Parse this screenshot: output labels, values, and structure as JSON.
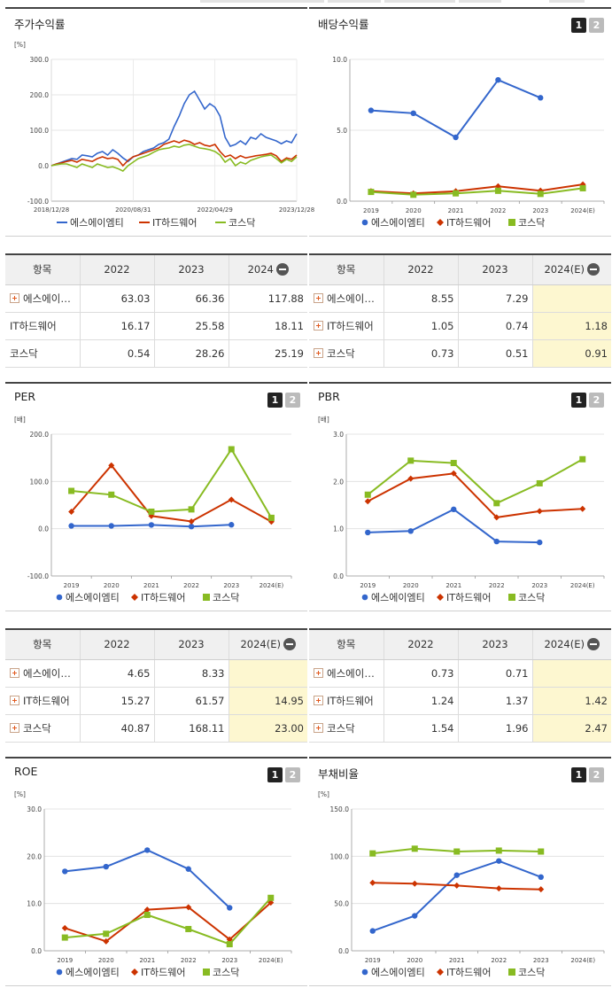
{
  "price_panel": {
    "title": "주가수익률",
    "unit": "[%]",
    "chart_data": {
      "type": "line",
      "yticks": [
        "300.0",
        "200.0",
        "100.0",
        "0.0",
        "-100.0"
      ],
      "ylim": [
        -100,
        300
      ],
      "xticks": [
        "2018/12/28",
        "2020/08/31",
        "2022/04/29",
        "2023/12/28"
      ],
      "series": [
        {
          "name": "에스에이엠티",
          "color": "#3366cc",
          "values": [
            0,
            5,
            10,
            15,
            20,
            18,
            30,
            28,
            25,
            35,
            40,
            30,
            45,
            35,
            22,
            12,
            25,
            30,
            40,
            45,
            50,
            60,
            65,
            75,
            110,
            140,
            175,
            200,
            210,
            185,
            160,
            175,
            165,
            140,
            80,
            55,
            60,
            70,
            60,
            80,
            75,
            90,
            80,
            75,
            70,
            62,
            70,
            65,
            90
          ]
        },
        {
          "name": "IT하드웨어",
          "color": "#cc3300",
          "values": [
            0,
            5,
            8,
            12,
            15,
            10,
            18,
            15,
            12,
            20,
            25,
            20,
            22,
            18,
            0,
            15,
            25,
            30,
            35,
            40,
            45,
            50,
            60,
            65,
            70,
            65,
            72,
            68,
            60,
            65,
            58,
            55,
            60,
            40,
            25,
            30,
            20,
            28,
            22,
            25,
            28,
            30,
            32,
            35,
            28,
            12,
            22,
            18,
            30
          ]
        },
        {
          "name": "코스닥",
          "color": "#88bb22",
          "values": [
            0,
            3,
            5,
            5,
            0,
            -5,
            5,
            0,
            -5,
            5,
            0,
            -5,
            -3,
            -8,
            -15,
            0,
            10,
            20,
            25,
            30,
            38,
            45,
            48,
            50,
            55,
            52,
            58,
            60,
            55,
            50,
            48,
            45,
            40,
            30,
            10,
            20,
            0,
            10,
            5,
            15,
            20,
            25,
            28,
            30,
            20,
            8,
            18,
            12,
            25
          ]
        }
      ]
    }
  },
  "dividend_panel": {
    "title": "배당수익률",
    "btn1": "1",
    "btn2": "2",
    "chart_data": {
      "type": "line",
      "yticks": [
        "10.0",
        "5.0",
        "0.0"
      ],
      "ylim": [
        0,
        10
      ],
      "categories": [
        "2019",
        "2020",
        "2021",
        "2022",
        "2023",
        "2024(E)"
      ],
      "series": [
        {
          "name": "에스에이엠티",
          "color": "#3366cc",
          "values": [
            6.4,
            6.2,
            4.5,
            8.55,
            7.29,
            null
          ]
        },
        {
          "name": "IT하드웨어",
          "color": "#cc3300",
          "values": [
            0.7,
            0.55,
            0.7,
            1.05,
            0.74,
            1.18
          ]
        },
        {
          "name": "코스닥",
          "color": "#88bb22",
          "values": [
            0.65,
            0.45,
            0.55,
            0.73,
            0.51,
            0.91
          ]
        }
      ]
    }
  },
  "per_panel": {
    "title": "PER",
    "unit": "[배]",
    "btn1": "1",
    "btn2": "2",
    "chart_data": {
      "type": "line",
      "yticks": [
        "200.0",
        "100.0",
        "0.0",
        "-100.0"
      ],
      "ylim": [
        -100,
        200
      ],
      "categories": [
        "2019",
        "2020",
        "2021",
        "2022",
        "2023",
        "2024(E)"
      ],
      "series": [
        {
          "name": "에스에이엠티",
          "color": "#3366cc",
          "values": [
            6,
            6,
            8,
            4.65,
            8.33,
            null
          ]
        },
        {
          "name": "IT하드웨어",
          "color": "#cc3300",
          "values": [
            36,
            134,
            27,
            15.27,
            61.57,
            14.95
          ]
        },
        {
          "name": "코스닥",
          "color": "#88bb22",
          "values": [
            80,
            72,
            36,
            40.87,
            168.11,
            23.0
          ]
        }
      ]
    }
  },
  "pbr_panel": {
    "title": "PBR",
    "unit": "[배]",
    "btn1": "1",
    "btn2": "2",
    "chart_data": {
      "type": "line",
      "yticks": [
        "3.0",
        "2.0",
        "1.0",
        "0.0"
      ],
      "ylim": [
        0,
        3
      ],
      "categories": [
        "2019",
        "2020",
        "2021",
        "2022",
        "2023",
        "2024(E)"
      ],
      "series": [
        {
          "name": "에스에이엠티",
          "color": "#3366cc",
          "values": [
            0.92,
            0.95,
            1.41,
            0.73,
            0.71,
            null
          ]
        },
        {
          "name": "IT하드웨어",
          "color": "#cc3300",
          "values": [
            1.58,
            2.06,
            2.17,
            1.24,
            1.37,
            1.42
          ]
        },
        {
          "name": "코스닥",
          "color": "#88bb22",
          "values": [
            1.72,
            2.44,
            2.39,
            1.54,
            1.96,
            2.47
          ]
        }
      ]
    }
  },
  "roe_panel": {
    "title": "ROE",
    "unit": "[%]",
    "btn1": "1",
    "btn2": "2",
    "chart_data": {
      "type": "line",
      "yticks": [
        "30.0",
        "20.0",
        "10.0",
        "0.0"
      ],
      "ylim": [
        0,
        30
      ],
      "categories": [
        "2019",
        "2020",
        "2021",
        "2022",
        "2023",
        "2024(E)"
      ],
      "series": [
        {
          "name": "에스에이엠티",
          "color": "#3366cc",
          "values": [
            16.8,
            17.8,
            21.3,
            17.3,
            9.1,
            null
          ]
        },
        {
          "name": "IT하드웨어",
          "color": "#cc3300",
          "values": [
            4.8,
            2,
            8.7,
            9.2,
            2.4,
            10.2
          ]
        },
        {
          "name": "코스닥",
          "color": "#88bb22",
          "values": [
            2.8,
            3.6,
            7.6,
            4.6,
            1.4,
            11.2
          ]
        }
      ]
    }
  },
  "debt_panel": {
    "title": "부채비율",
    "unit": "[%]",
    "btn1": "1",
    "btn2": "2",
    "chart_data": {
      "type": "line",
      "yticks": [
        "150.0",
        "100.0",
        "50.0",
        "0.0"
      ],
      "ylim": [
        0,
        150
      ],
      "categories": [
        "2019",
        "2020",
        "2021",
        "2022",
        "2023",
        "2024(E)"
      ],
      "series": [
        {
          "name": "에스에이엠티",
          "color": "#3366cc",
          "values": [
            21,
            37,
            80,
            95,
            78,
            null
          ]
        },
        {
          "name": "IT하드웨어",
          "color": "#cc3300",
          "values": [
            72,
            71,
            69,
            66,
            65,
            null
          ]
        },
        {
          "name": "코스닥",
          "color": "#88bb22",
          "values": [
            103,
            108,
            105,
            106,
            105,
            null
          ]
        }
      ]
    }
  },
  "table_price": {
    "headers": [
      "항목",
      "2022",
      "2023",
      "2024"
    ],
    "rows": [
      {
        "name": "에스에이…",
        "values": [
          "63.03",
          "66.36",
          "117.88"
        ],
        "expandable": true
      },
      {
        "name": "IT하드웨어",
        "values": [
          "16.17",
          "25.58",
          "18.11"
        ],
        "expandable": false
      },
      {
        "name": "코스닥",
        "values": [
          "0.54",
          "28.26",
          "25.19"
        ],
        "expandable": false
      }
    ]
  },
  "table_dividend": {
    "headers": [
      "항목",
      "2022",
      "2023",
      "2024(E)"
    ],
    "rows": [
      {
        "name": "에스에이…",
        "values": [
          "8.55",
          "7.29",
          ""
        ],
        "expandable": true
      },
      {
        "name": "IT하드웨어",
        "values": [
          "1.05",
          "0.74",
          "1.18"
        ],
        "expandable": true
      },
      {
        "name": "코스닥",
        "values": [
          "0.73",
          "0.51",
          "0.91"
        ],
        "expandable": true
      }
    ]
  },
  "table_per": {
    "headers": [
      "항목",
      "2022",
      "2023",
      "2024(E)"
    ],
    "rows": [
      {
        "name": "에스에이…",
        "values": [
          "4.65",
          "8.33",
          ""
        ],
        "expandable": true
      },
      {
        "name": "IT하드웨어",
        "values": [
          "15.27",
          "61.57",
          "14.95"
        ],
        "expandable": true
      },
      {
        "name": "코스닥",
        "values": [
          "40.87",
          "168.11",
          "23.00"
        ],
        "expandable": true
      }
    ]
  },
  "table_pbr": {
    "headers": [
      "항목",
      "2022",
      "2023",
      "2024(E)"
    ],
    "rows": [
      {
        "name": "에스에이…",
        "values": [
          "0.73",
          "0.71",
          ""
        ],
        "expandable": true
      },
      {
        "name": "IT하드웨어",
        "values": [
          "1.24",
          "1.37",
          "1.42"
        ],
        "expandable": true
      },
      {
        "name": "코스닥",
        "values": [
          "1.54",
          "1.96",
          "2.47"
        ],
        "expandable": true
      }
    ]
  },
  "colors": {
    "blue": "#3366cc",
    "red": "#cc3300",
    "green": "#88bb22",
    "highlight": "#fdf7d0"
  }
}
